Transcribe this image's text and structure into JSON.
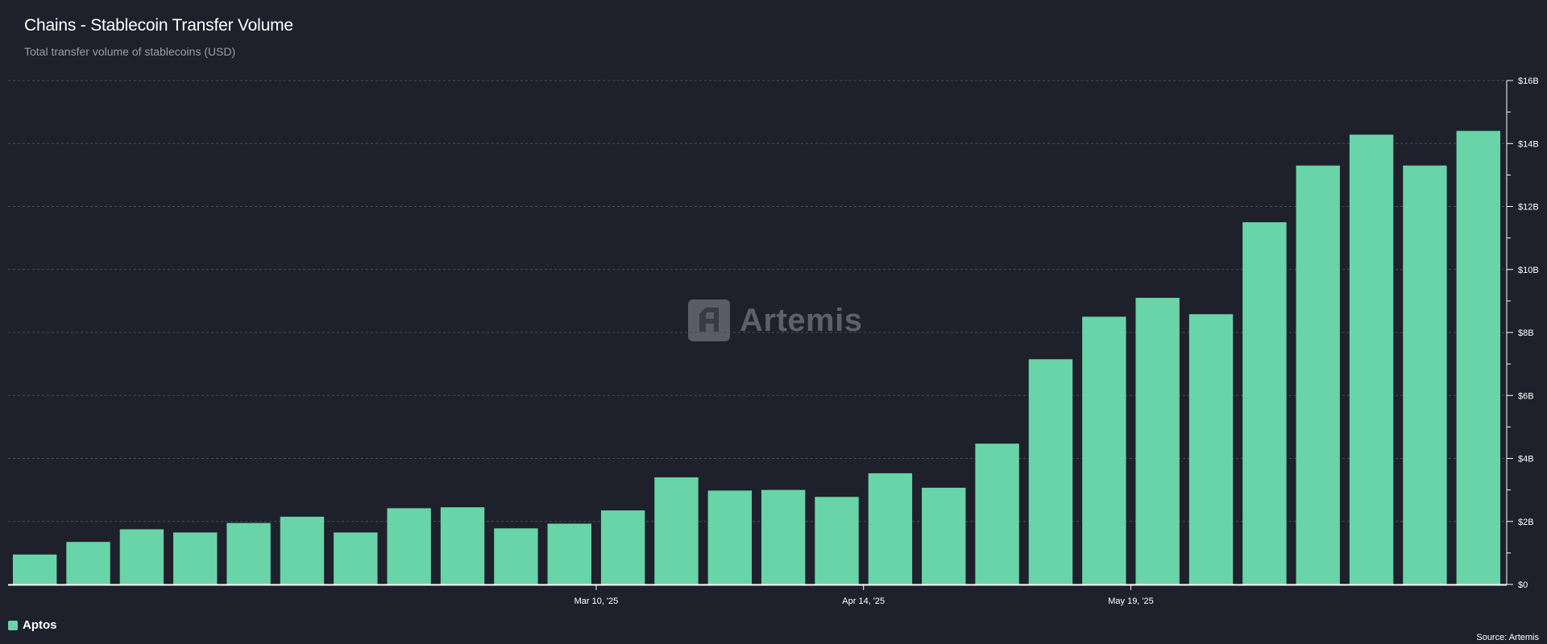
{
  "header": {
    "title": "Chains - Stablecoin Transfer Volume",
    "subtitle": "Total transfer volume of stablecoins (USD)"
  },
  "watermark": {
    "text": "Artemis",
    "icon": "artemis-logo-icon"
  },
  "legend": {
    "label": "Aptos",
    "color": "#68d4a8"
  },
  "source": "Source: Artemis",
  "colors": {
    "background": "#1e202b",
    "bar": "#68d4a8",
    "grid": "#4a4d58",
    "axis": "#ffffff"
  },
  "chart_data": {
    "type": "bar",
    "title": "Chains - Stablecoin Transfer Volume",
    "subtitle": "Total transfer volume of stablecoins (USD)",
    "ylim": [
      0,
      16
    ],
    "y_unit": "B USD",
    "y_ticks": [
      "$0",
      "$2B",
      "$4B",
      "$6B",
      "$8B",
      "$10B",
      "$12B",
      "$14B",
      "$16B"
    ],
    "x_tick_labels": [
      {
        "label": "Mar 10, '25",
        "bar_index": 10.5
      },
      {
        "label": "Apr 14, '25",
        "bar_index": 15.5
      },
      {
        "label": "May 19, '25",
        "bar_index": 20.5
      }
    ],
    "grid": true,
    "legend_position": "bottom-left",
    "series": [
      {
        "name": "Aptos",
        "color": "#68d4a8",
        "values": [
          0.95,
          1.35,
          1.75,
          1.65,
          1.95,
          2.15,
          1.65,
          2.42,
          2.45,
          1.78,
          1.93,
          2.35,
          3.4,
          2.98,
          3.0,
          2.78,
          3.53,
          3.07,
          4.47,
          7.15,
          8.5,
          9.1,
          8.58,
          11.5,
          13.3,
          14.28,
          13.3,
          14.4
        ]
      }
    ]
  }
}
